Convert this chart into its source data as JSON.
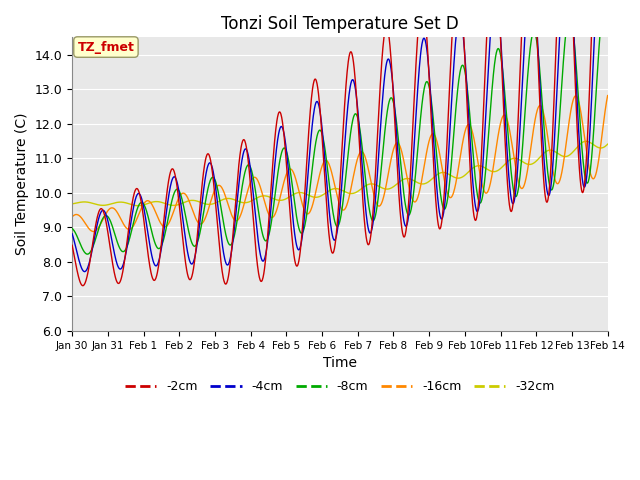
{
  "title": "Tonzi Soil Temperature Set D",
  "xlabel": "Time",
  "ylabel": "Soil Temperature (C)",
  "ylim": [
    6.0,
    14.5
  ],
  "yticks": [
    6.0,
    7.0,
    8.0,
    9.0,
    10.0,
    11.0,
    12.0,
    13.0,
    14.0
  ],
  "xtick_labels": [
    "Jan 30",
    "Jan 31",
    "Feb 1",
    "Feb 2",
    "Feb 3",
    "Feb 4",
    "Feb 5",
    "Feb 6",
    "Feb 7",
    "Feb 8",
    "Feb 9",
    "Feb 10",
    "Feb 11",
    "Feb 12",
    "Feb 13",
    "Feb 14"
  ],
  "series_labels": [
    "-2cm",
    "-4cm",
    "-8cm",
    "-16cm",
    "-32cm"
  ],
  "series_colors": [
    "#cc0000",
    "#0000cc",
    "#00aa00",
    "#ff8800",
    "#cccc00"
  ],
  "annotation_text": "TZ_fmet",
  "annotation_color": "#cc0000",
  "annotation_bg": "#ffffcc",
  "background_color": "#e8e8e8",
  "grid_color": "#ffffff"
}
